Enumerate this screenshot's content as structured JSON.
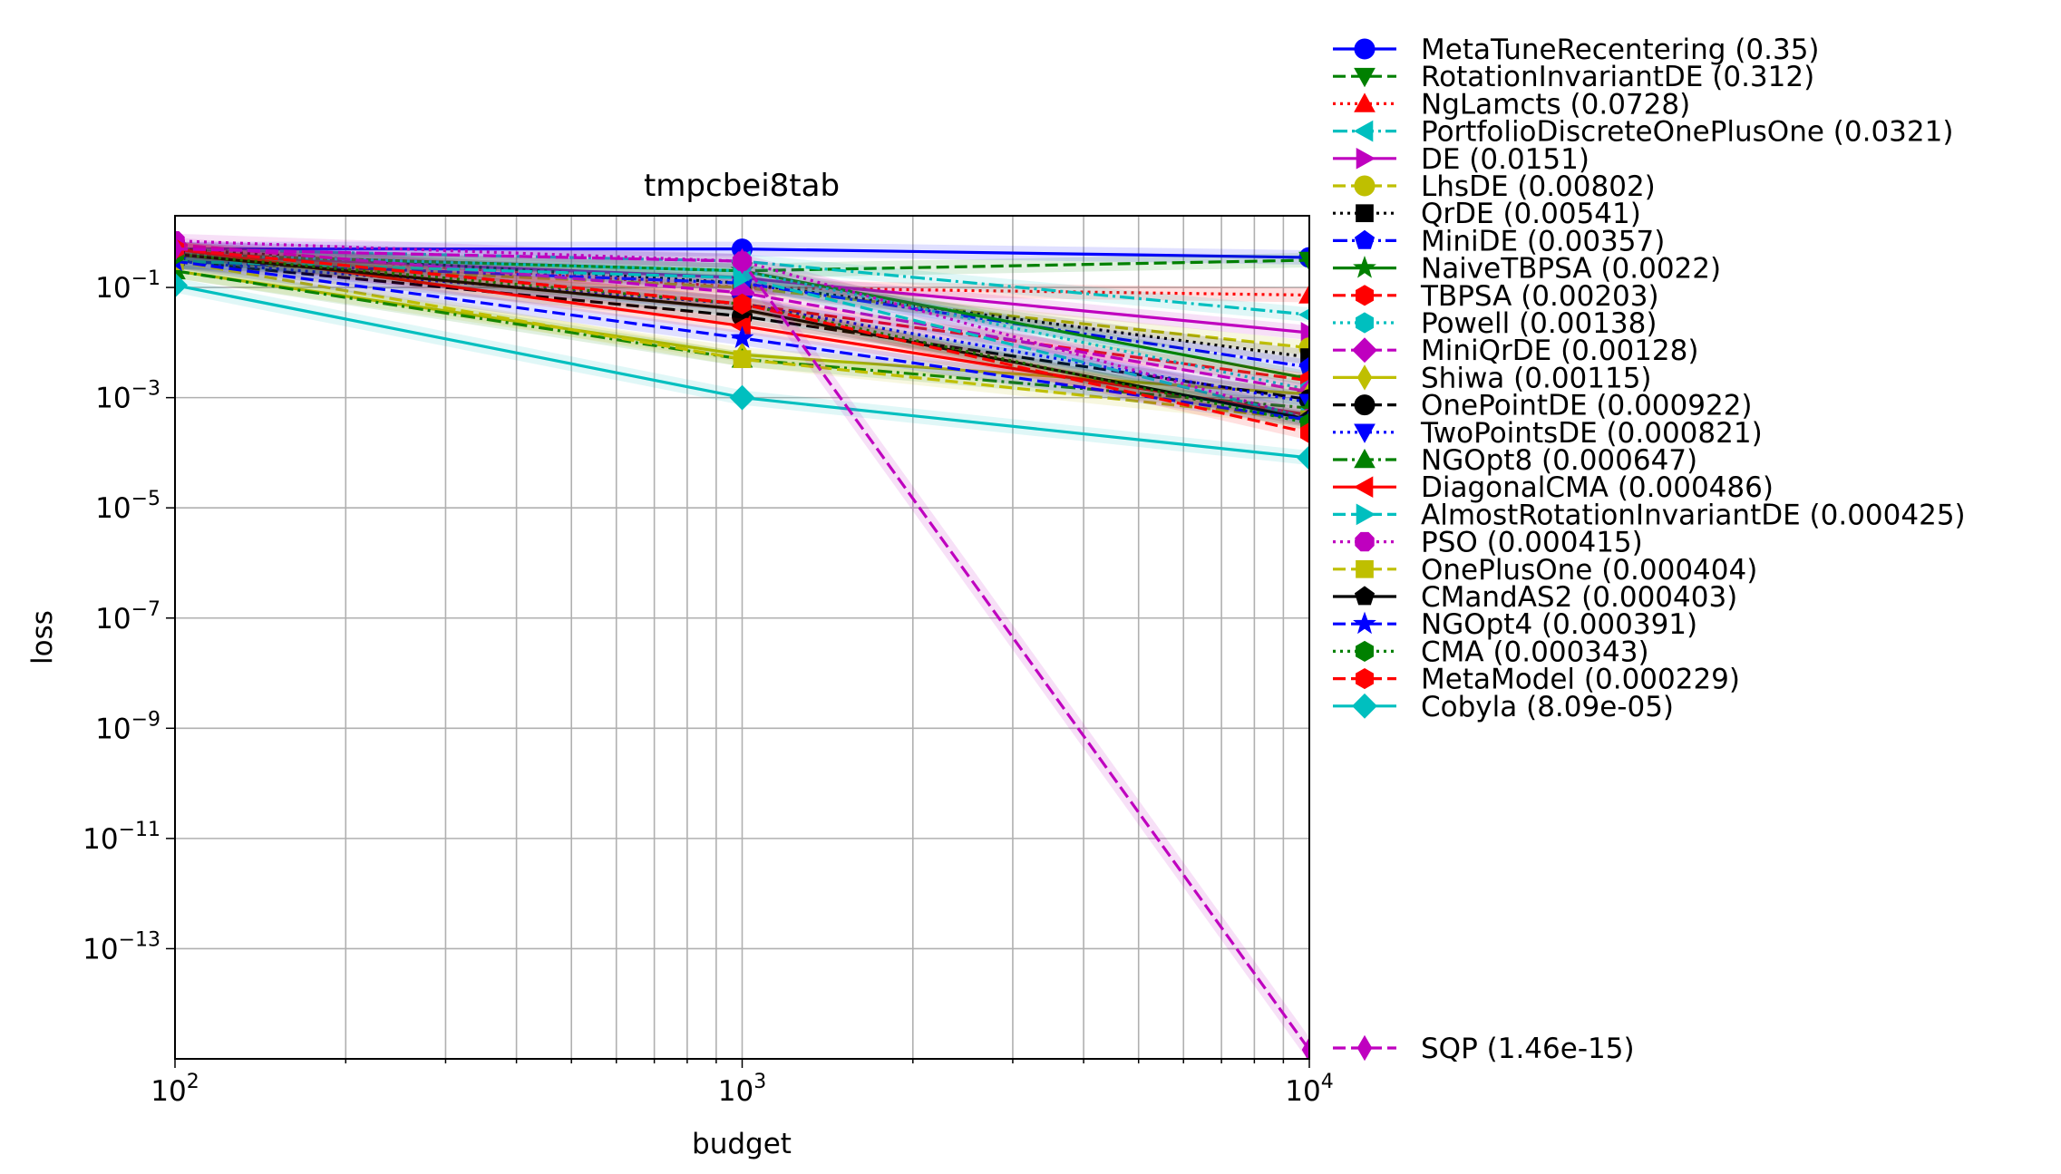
{
  "chart_data": {
    "type": "line",
    "title": "tmpcbei8tab",
    "xlabel": "budget",
    "ylabel": "loss",
    "x_scale": "log",
    "y_scale": "log",
    "xlim": [
      100,
      10000
    ],
    "ylim": [
      1e-15,
      2
    ],
    "grid": true,
    "legend_position": "right, outside plot",
    "x": [
      100,
      1000,
      10000
    ],
    "x_ticks": [
      {
        "value": 100,
        "base": "10",
        "exp": "2"
      },
      {
        "value": 1000,
        "base": "10",
        "exp": "3"
      },
      {
        "value": 10000,
        "base": "10",
        "exp": "4"
      }
    ],
    "y_ticks": [
      {
        "value": 0.1,
        "base": "10",
        "exp": "−1"
      },
      {
        "value": 0.001,
        "base": "10",
        "exp": "−3"
      },
      {
        "value": 1e-05,
        "base": "10",
        "exp": "−5"
      },
      {
        "value": 1e-07,
        "base": "10",
        "exp": "−7"
      },
      {
        "value": 1e-09,
        "base": "10",
        "exp": "−9"
      },
      {
        "value": 1e-11,
        "base": "10",
        "exp": "−11"
      },
      {
        "value": 1e-13,
        "base": "10",
        "exp": "−13"
      }
    ],
    "series": [
      {
        "name": "MetaTuneRecentering (0.35)",
        "color": "#0000ff",
        "dash": "solid",
        "marker": "circle",
        "values": [
          0.5,
          0.5,
          0.35
        ]
      },
      {
        "name": "RotationInvariantDE (0.312)",
        "color": "#008000",
        "dash": "dashed",
        "marker": "triangle-down",
        "values": [
          0.4,
          0.2,
          0.312
        ]
      },
      {
        "name": "NgLamcts (0.0728)",
        "color": "#ff0000",
        "dash": "dotted",
        "marker": "triangle-up",
        "values": [
          0.5,
          0.1,
          0.0728
        ]
      },
      {
        "name": "PortfolioDiscreteOnePlusOne (0.0321)",
        "color": "#00bfbf",
        "dash": "dashdot",
        "marker": "triangle-left",
        "values": [
          0.5,
          0.3,
          0.0321
        ]
      },
      {
        "name": "DE (0.0151)",
        "color": "#bf00bf",
        "dash": "solid",
        "marker": "triangle-right",
        "values": [
          0.4,
          0.15,
          0.0151
        ]
      },
      {
        "name": "LhsDE (0.00802)",
        "color": "#bfbf00",
        "dash": "dashed",
        "marker": "circle",
        "values": [
          0.3,
          0.1,
          0.00802
        ]
      },
      {
        "name": "QrDE (0.00541)",
        "color": "#000000",
        "dash": "dotted",
        "marker": "square",
        "values": [
          0.5,
          0.12,
          0.00541
        ]
      },
      {
        "name": "MiniDE (0.00357)",
        "color": "#0000ff",
        "dash": "dashdot",
        "marker": "pentagon",
        "values": [
          0.3,
          0.12,
          0.00357
        ]
      },
      {
        "name": "NaiveTBPSA (0.0022)",
        "color": "#008000",
        "dash": "solid",
        "marker": "star",
        "values": [
          0.4,
          0.2,
          0.0022
        ]
      },
      {
        "name": "TBPSA (0.00203)",
        "color": "#ff0000",
        "dash": "dashed",
        "marker": "hexagon",
        "values": [
          0.5,
          0.05,
          0.00203
        ]
      },
      {
        "name": "Powell (0.00138)",
        "color": "#00bfbf",
        "dash": "dotted",
        "marker": "hexagon",
        "values": [
          0.4,
          0.2,
          0.00138
        ]
      },
      {
        "name": "MiniQrDE (0.00128)",
        "color": "#bf00bf",
        "dash": "dashed",
        "marker": "diamond",
        "values": [
          0.6,
          0.08,
          0.00128
        ]
      },
      {
        "name": "Shiwa (0.00115)",
        "color": "#bfbf00",
        "dash": "solid",
        "marker": "thin-diamond",
        "values": [
          0.2,
          0.006,
          0.00115
        ]
      },
      {
        "name": "OnePointDE (0.000922)",
        "color": "#000000",
        "dash": "dashed",
        "marker": "circle",
        "values": [
          0.3,
          0.03,
          0.000922
        ]
      },
      {
        "name": "TwoPointsDE (0.000821)",
        "color": "#0000ff",
        "dash": "dotted",
        "marker": "triangle-down",
        "values": [
          0.3,
          0.05,
          0.000821
        ]
      },
      {
        "name": "NGOpt8 (0.000647)",
        "color": "#008000",
        "dash": "dashdot",
        "marker": "triangle-up",
        "values": [
          0.2,
          0.005,
          0.000647
        ]
      },
      {
        "name": "DiagonalCMA (0.000486)",
        "color": "#ff0000",
        "dash": "solid",
        "marker": "triangle-left",
        "values": [
          0.5,
          0.02,
          0.000486
        ]
      },
      {
        "name": "AlmostRotationInvariantDE (0.000425)",
        "color": "#00bfbf",
        "dash": "dashed",
        "marker": "triangle-right",
        "values": [
          0.3,
          0.15,
          0.000425
        ]
      },
      {
        "name": "PSO (0.000415)",
        "color": "#bf00bf",
        "dash": "dotted",
        "marker": "octagon",
        "values": [
          0.7,
          0.3,
          0.000415
        ]
      },
      {
        "name": "OnePlusOne (0.000404)",
        "color": "#bfbf00",
        "dash": "dashed",
        "marker": "square",
        "values": [
          0.3,
          0.005,
          0.000404
        ]
      },
      {
        "name": "CMandAS2 (0.000403)",
        "color": "#000000",
        "dash": "solid",
        "marker": "pentagon",
        "values": [
          0.4,
          0.04,
          0.000403
        ]
      },
      {
        "name": "NGOpt4 (0.000391)",
        "color": "#0000ff",
        "dash": "dashed",
        "marker": "star",
        "values": [
          0.3,
          0.012,
          0.000391
        ]
      },
      {
        "name": "CMA (0.000343)",
        "color": "#008000",
        "dash": "dotted",
        "marker": "hexagon",
        "values": [
          0.4,
          0.05,
          0.000343
        ]
      },
      {
        "name": "MetaModel (0.000229)",
        "color": "#ff0000",
        "dash": "dashed",
        "marker": "hexagon",
        "values": [
          0.5,
          0.05,
          0.000229
        ]
      },
      {
        "name": "Cobyla (8.09e-05)",
        "color": "#00bfbf",
        "dash": "solid",
        "marker": "diamond",
        "values": [
          0.11,
          0.001,
          8.09e-05
        ]
      },
      {
        "name": "SQP (1.46e-15)",
        "color": "#bf00bf",
        "dash": "dashed",
        "marker": "thin-diamond",
        "values": [
          0.5,
          0.3,
          1.46e-15
        ]
      }
    ]
  }
}
